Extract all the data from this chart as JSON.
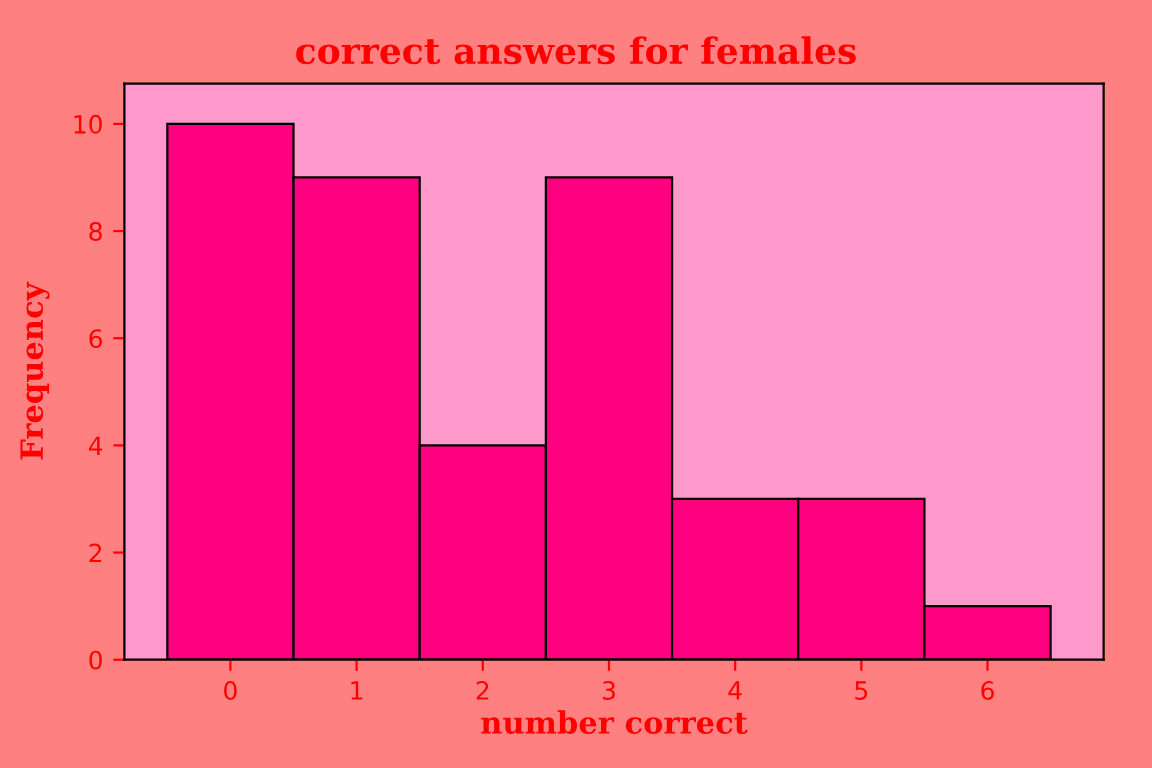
{
  "chart_data": {
    "type": "histogram",
    "title": "correct answers for females",
    "xlabel": "number correct",
    "ylabel": "Frequency",
    "bins": [
      -0.5,
      0.5,
      1.5,
      2.5,
      3.5,
      4.5,
      5.5,
      6.5
    ],
    "values": [
      10,
      9,
      4,
      9,
      3,
      3,
      1
    ],
    "color": "#ff0080",
    "xlim": [
      -0.84,
      6.92
    ],
    "ylim": [
      0,
      10.75
    ],
    "xticks": [
      0,
      1,
      2,
      3,
      4,
      5,
      6
    ],
    "yticks": [
      0,
      2,
      4,
      6,
      8,
      10
    ],
    "grid": false,
    "legend": false
  }
}
